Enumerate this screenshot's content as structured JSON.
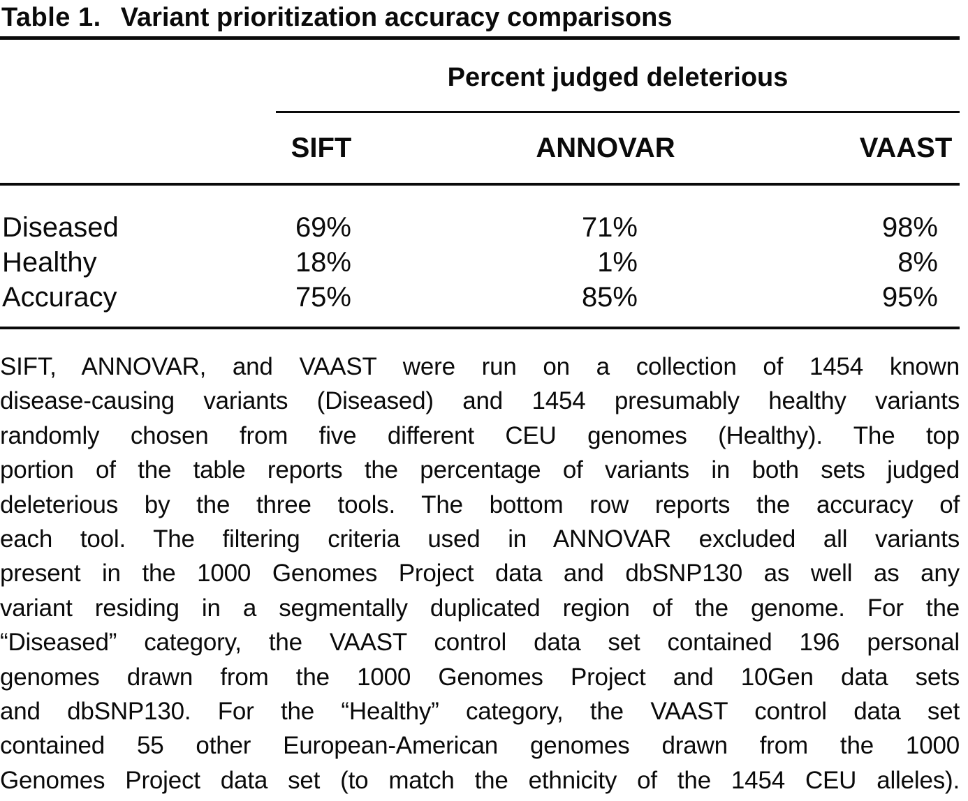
{
  "table": {
    "label": "Table 1.",
    "title": "Variant prioritization accuracy comparisons",
    "spanner": "Percent judged deleterious",
    "columns": [
      "SIFT",
      "ANNOVAR",
      "VAAST"
    ],
    "rows": [
      {
        "label": "Diseased",
        "values": [
          "69%",
          "71%",
          "98%"
        ]
      },
      {
        "label": "Healthy",
        "values": [
          "18%",
          "1%",
          "8%"
        ]
      },
      {
        "label": "Accuracy",
        "values": [
          "75%",
          "85%",
          "95%"
        ]
      }
    ]
  },
  "footnote_lines": [
    "SIFT, ANNOVAR, and VAAST were run on a collection of 1454 known",
    "disease-causing variants (Diseased) and 1454 presumably healthy variants",
    "randomly chosen from five different CEU genomes (Healthy). The top",
    "portion of the table reports the percentage of variants in both sets judged",
    "deleterious by the three tools. The bottom row reports the accuracy of",
    "each tool. The filtering criteria used in ANNOVAR excluded all variants",
    "present in the 1000 Genomes Project data and dbSNP130 as well as any",
    "variant residing in a segmentally duplicated region of the genome. For the",
    "“Diseased” category, the VAAST control data set contained 196 personal",
    "genomes drawn from the 1000 Genomes Project and 10Gen data sets",
    "and dbSNP130. For the “Healthy” category, the VAAST control data set",
    "contained 55 other European-American genomes drawn from the 1000",
    "Genomes Project data set (to match the ethnicity of the 1454 CEU alleles)."
  ],
  "colors": {
    "text": "#0a0a0a",
    "background": "#ffffff",
    "rule": "#0a0a0a"
  }
}
